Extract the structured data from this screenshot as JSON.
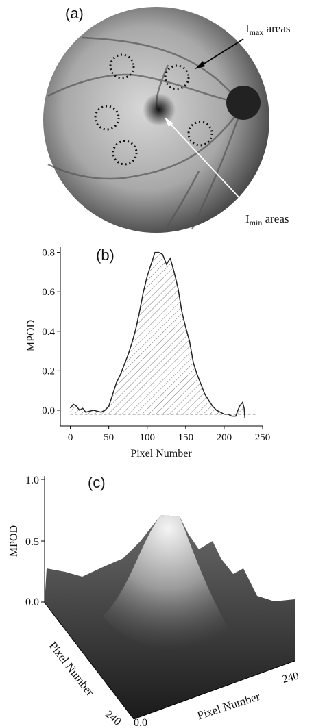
{
  "panel_a": {
    "label": "(a)",
    "imax": {
      "main": "I",
      "sub": "max",
      "rest": " areas"
    },
    "imin": {
      "main": "I",
      "sub": "min",
      "rest": " areas"
    }
  },
  "chart_data": {
    "type": "line",
    "label": "(b)",
    "y_label": "MPOD",
    "x_label": "Pixel Number",
    "x": [
      0,
      4,
      8,
      12,
      16,
      20,
      30,
      40,
      45,
      50,
      55,
      60,
      65,
      70,
      75,
      80,
      85,
      90,
      95,
      100,
      105,
      110,
      115,
      120,
      125,
      130,
      135,
      140,
      145,
      150,
      155,
      160,
      165,
      170,
      175,
      180,
      185,
      190,
      195,
      200,
      205,
      210,
      215,
      220,
      224,
      226,
      227
    ],
    "values": [
      0.01,
      0.03,
      0.02,
      0.0,
      0.01,
      -0.01,
      0.0,
      -0.01,
      0.0,
      0.02,
      0.08,
      0.14,
      0.18,
      0.23,
      0.28,
      0.34,
      0.41,
      0.5,
      0.6,
      0.68,
      0.74,
      0.8,
      0.8,
      0.79,
      0.74,
      0.77,
      0.7,
      0.62,
      0.5,
      0.42,
      0.35,
      0.24,
      0.18,
      0.13,
      0.08,
      0.05,
      0.02,
      0.0,
      -0.01,
      -0.02,
      -0.02,
      -0.03,
      -0.03,
      0.02,
      0.04,
      0.01,
      -0.04
    ],
    "color": "#222222",
    "reference_line": -0.02,
    "xlim": [
      -13,
      250
    ],
    "ylim": [
      -0.08,
      0.83
    ],
    "xticks": [
      0,
      50,
      100,
      150,
      200,
      250
    ],
    "yticks": [
      {
        "value": 0,
        "label": "0.0"
      },
      0.2,
      0.4,
      0.6,
      0.8
    ]
  },
  "panel_c": {
    "label": "(c)",
    "z_label": "MPOD",
    "z_ticks": [
      "1.0",
      "0.5",
      "0.0"
    ],
    "left_axis_label": "Pixel Number",
    "left_end": "240",
    "origin": "0.0",
    "right_end": "240",
    "right_axis_label": "Pixel Number"
  }
}
